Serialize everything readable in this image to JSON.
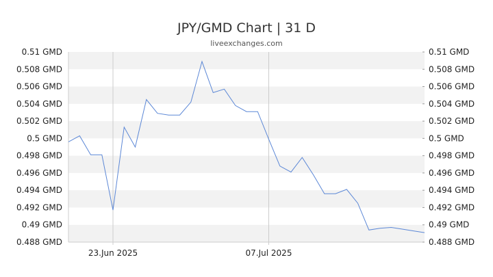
{
  "chart_data": {
    "type": "line",
    "title": "JPY/GMD Chart | 31 D",
    "subtitle": "liveexchanges.com",
    "xlabel": "",
    "ylabel": "",
    "ylim": [
      0.488,
      0.51
    ],
    "y_ticks": [
      "0.488 GMD",
      "0.49 GMD",
      "0.492 GMD",
      "0.494 GMD",
      "0.496 GMD",
      "0.498 GMD",
      "0.5 GMD",
      "0.502 GMD",
      "0.504 GMD",
      "0.506 GMD",
      "0.508 GMD",
      "0.51 GMD"
    ],
    "y_tick_values": [
      0.488,
      0.49,
      0.492,
      0.494,
      0.496,
      0.498,
      0.5,
      0.502,
      0.504,
      0.506,
      0.508,
      0.51
    ],
    "x_ticks": [
      {
        "label": "23.Jun 2025",
        "index": 4
      },
      {
        "label": "07.Jul 2025",
        "index": 18
      }
    ],
    "x_count": 33,
    "grid": "alternating horizontal bands",
    "series": [
      {
        "color": "#5b87d6",
        "values": [
          0.4996,
          0.5003,
          0.4981,
          0.4981,
          0.4917,
          0.5013,
          0.499,
          0.5045,
          0.5029,
          0.5027,
          0.5027,
          0.5042,
          0.5089,
          0.5053,
          0.5057,
          0.5038,
          0.5031,
          0.5031,
          0.4999,
          0.4968,
          0.4961,
          0.4978,
          0.4958,
          0.4936,
          0.4936,
          0.4941,
          0.4925,
          0.4894,
          0.4896,
          0.4897,
          0.4895,
          0.4893,
          0.4891
        ]
      }
    ]
  }
}
